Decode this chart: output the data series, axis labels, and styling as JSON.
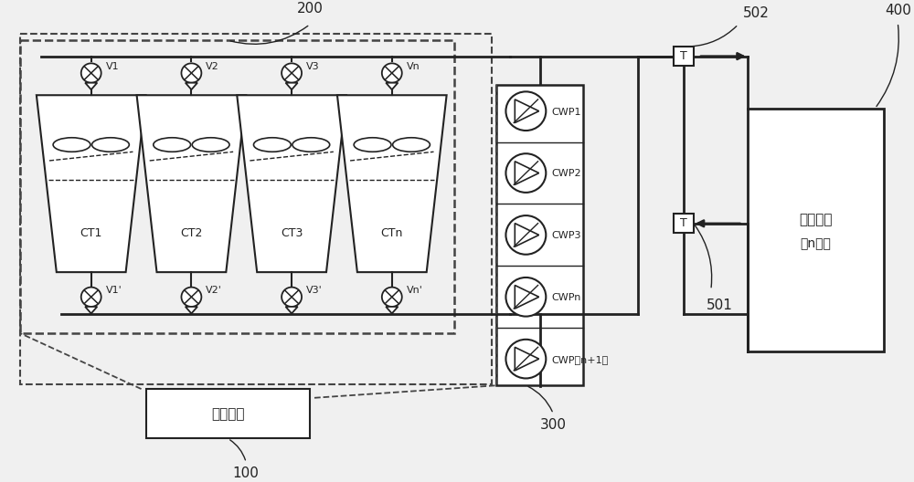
{
  "bg_color": "#f0f0f0",
  "line_color": "#222222",
  "dashed_color": "#444444",
  "label_200": "200",
  "label_100": "100",
  "label_300": "300",
  "label_400": "400",
  "label_501": "501",
  "label_502": "502",
  "ct_labels": [
    "CT1",
    "CT2",
    "CT3",
    "CTn"
  ],
  "v_top_labels": [
    "V1",
    "V2",
    "V3",
    "Vn"
  ],
  "v_bot_labels": [
    "V1'",
    "V2'",
    "V3'",
    "Vn'"
  ],
  "cwp_labels": [
    "CWP1",
    "CWP2",
    "CWP3",
    "CWPn",
    "CWP（n+1）"
  ],
  "chiller_label": "冷水机组",
  "chiller_sub": "（n台）",
  "control_label": "控制装置",
  "T_label": "T"
}
